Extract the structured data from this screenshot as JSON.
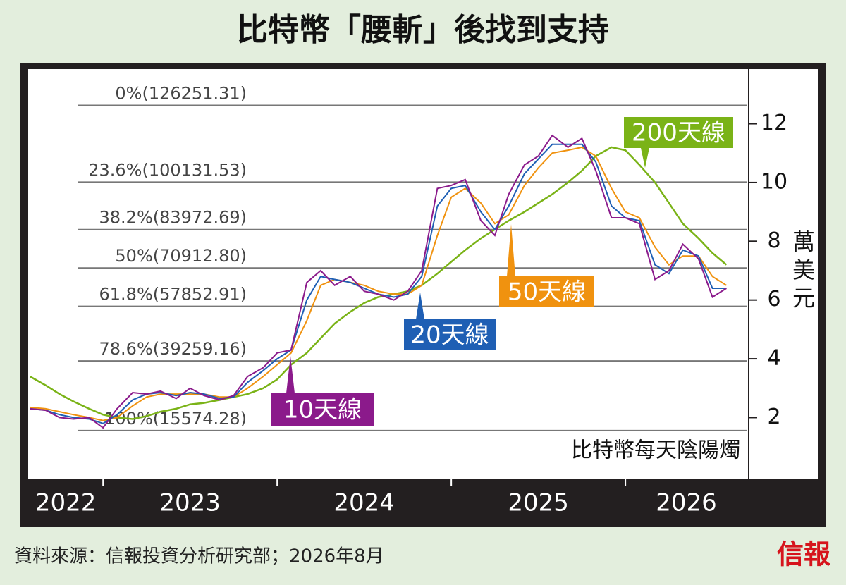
{
  "chart_data": {
    "type": "line",
    "title": "比特幣「腰斬」後找到支持",
    "note": "比特幣每天陰陽燭",
    "y_label": "萬美元",
    "source": "資料來源：信報投資分析研究部；2026年8月",
    "logo": "信報",
    "x": [
      2022.58,
      2022.67,
      2022.75,
      2022.83,
      2022.92,
      2023.0,
      2023.08,
      2023.17,
      2023.25,
      2023.33,
      2023.42,
      2023.5,
      2023.58,
      2023.67,
      2023.75,
      2023.83,
      2023.92,
      2024.0,
      2024.08,
      2024.17,
      2024.25,
      2024.33,
      2024.42,
      2024.5,
      2024.58,
      2024.67,
      2024.75,
      2024.83,
      2024.92,
      2025.0,
      2025.08,
      2025.17,
      2025.25,
      2025.33,
      2025.42,
      2025.5,
      2025.58,
      2025.67,
      2025.75,
      2025.83,
      2025.92,
      2026.0,
      2026.08,
      2026.17,
      2026.25,
      2026.33,
      2026.42,
      2026.5,
      2026.58
    ],
    "xlim": [
      2022.57,
      2026.7
    ],
    "years": [
      2022,
      2023,
      2024,
      2025,
      2026
    ],
    "xticks": [
      2023,
      2024,
      2025,
      2026
    ],
    "ylim": [
      -0.1,
      13.86
    ],
    "yticks": [
      2,
      4,
      6,
      8,
      10,
      12
    ],
    "levels": [
      {
        "label": "0%(126251.31)",
        "value": 12.625131
      },
      {
        "label": "23.6%(100131.53)",
        "value": 10.013153
      },
      {
        "label": "38.2%(83972.69)",
        "value": 8.397269
      },
      {
        "label": "50%(70912.80)",
        "value": 7.09128
      },
      {
        "label": "61.8%(57852.91)",
        "value": 5.785291
      },
      {
        "label": "78.6%(39259.16)",
        "value": 3.925916
      },
      {
        "label": "100%(15574.28)",
        "value": 1.557428
      }
    ],
    "series": [
      {
        "name": "10天線",
        "color": "#8b1a8b",
        "values": [
          2.3,
          2.25,
          2.0,
          1.95,
          2.0,
          1.65,
          2.3,
          2.85,
          2.8,
          2.9,
          2.65,
          3.0,
          2.75,
          2.6,
          2.75,
          3.4,
          3.7,
          4.2,
          4.3,
          6.6,
          7.0,
          6.5,
          6.8,
          6.3,
          6.2,
          6.0,
          6.3,
          7.0,
          9.8,
          9.9,
          10.1,
          8.7,
          8.2,
          9.6,
          10.6,
          10.9,
          11.6,
          11.2,
          11.5,
          10.4,
          8.8,
          8.8,
          8.6,
          6.7,
          7.0,
          7.9,
          7.4,
          6.1,
          6.4
        ]
      },
      {
        "name": "20天線",
        "color": "#1f5fb4",
        "values": [
          2.3,
          2.25,
          2.1,
          2.0,
          1.95,
          1.8,
          2.1,
          2.6,
          2.8,
          2.85,
          2.75,
          2.85,
          2.8,
          2.65,
          2.7,
          3.2,
          3.6,
          4.0,
          4.3,
          6.0,
          6.8,
          6.7,
          6.6,
          6.4,
          6.2,
          6.1,
          6.2,
          6.8,
          9.2,
          9.8,
          9.9,
          9.0,
          8.4,
          9.2,
          10.3,
          10.8,
          11.3,
          11.3,
          11.3,
          10.7,
          9.2,
          8.8,
          8.7,
          7.2,
          6.9,
          7.7,
          7.5,
          6.4,
          6.4
        ]
      },
      {
        "name": "50天線",
        "color": "#f0920f",
        "values": [
          2.35,
          2.3,
          2.2,
          2.1,
          2.0,
          1.9,
          2.0,
          2.4,
          2.7,
          2.8,
          2.8,
          2.8,
          2.8,
          2.7,
          2.7,
          3.0,
          3.4,
          3.8,
          4.2,
          5.3,
          6.5,
          6.7,
          6.6,
          6.5,
          6.3,
          6.2,
          6.2,
          6.5,
          8.2,
          9.5,
          9.8,
          9.3,
          8.6,
          8.9,
          9.9,
          10.5,
          11.0,
          11.1,
          11.2,
          10.9,
          9.8,
          9.0,
          8.8,
          7.8,
          7.2,
          7.5,
          7.5,
          6.8,
          6.5
        ]
      },
      {
        "name": "200天線",
        "color": "#7ab317",
        "values": [
          3.4,
          3.1,
          2.8,
          2.55,
          2.3,
          2.1,
          2.0,
          1.95,
          2.05,
          2.2,
          2.3,
          2.45,
          2.5,
          2.6,
          2.7,
          2.8,
          3.0,
          3.3,
          3.8,
          4.2,
          4.7,
          5.2,
          5.6,
          5.9,
          6.1,
          6.2,
          6.3,
          6.5,
          6.9,
          7.3,
          7.7,
          8.1,
          8.4,
          8.7,
          9.0,
          9.3,
          9.6,
          10.0,
          10.4,
          10.9,
          11.2,
          11.1,
          10.6,
          10.0,
          9.3,
          8.6,
          8.1,
          7.6,
          7.2
        ]
      }
    ]
  }
}
